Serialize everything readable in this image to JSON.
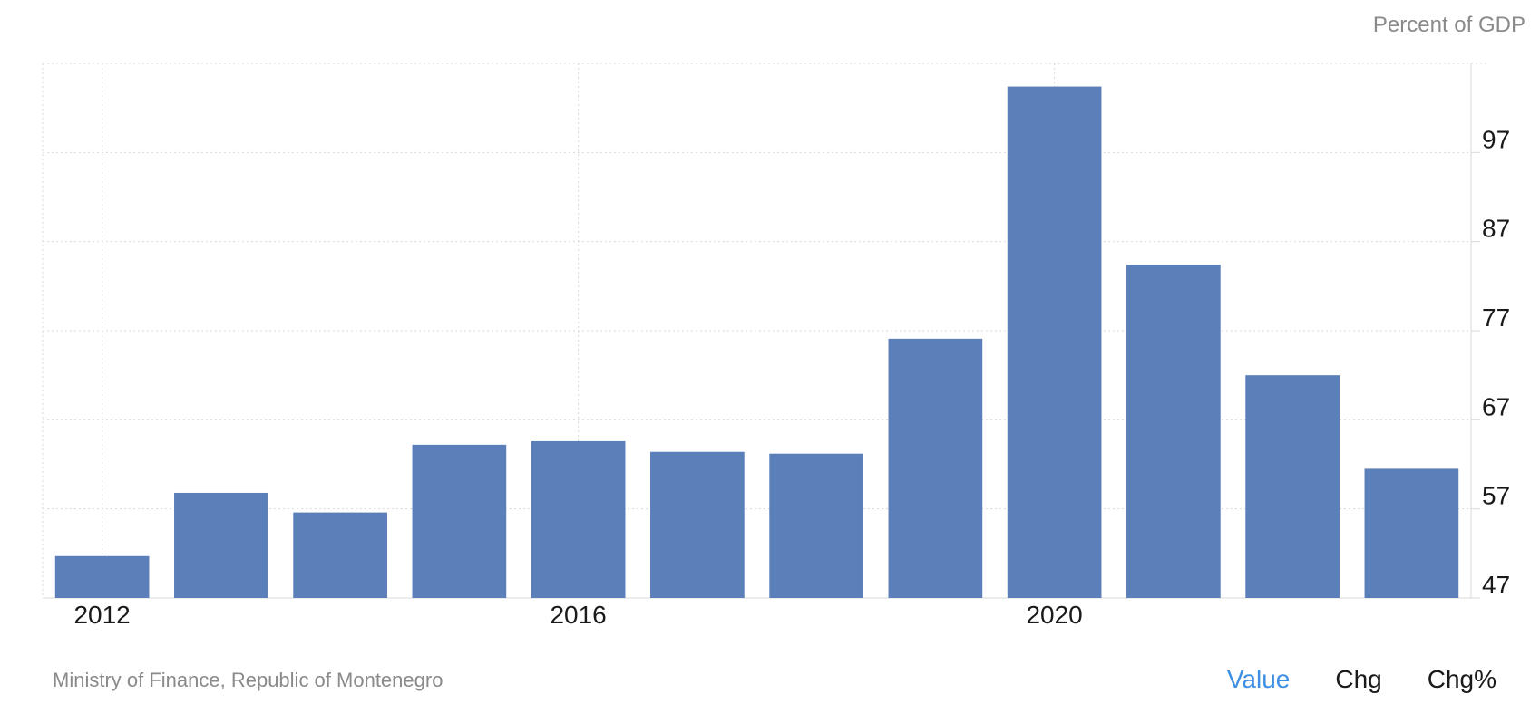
{
  "unit_label": "Percent of GDP",
  "source": "Ministry of Finance, Republic of Montenegro",
  "toggles": [
    {
      "label": "Value",
      "active": true
    },
    {
      "label": "Chg",
      "active": false
    },
    {
      "label": "Chg%",
      "active": false
    }
  ],
  "colors": {
    "bar": "#5b7fb8",
    "grid": "#d9d9d9",
    "active_toggle": "#3d8fe4"
  },
  "chart_data": {
    "type": "bar",
    "categories": [
      "2012",
      "2013",
      "2014",
      "2015",
      "2016",
      "2017",
      "2018",
      "2019",
      "2020",
      "2021",
      "2022",
      "2023"
    ],
    "values": [
      51.7,
      58.8,
      56.6,
      64.2,
      64.6,
      63.4,
      63.2,
      76.1,
      104.4,
      84.4,
      72.0,
      61.5
    ],
    "x_tick_labels": [
      "2012",
      "2016",
      "2020"
    ],
    "y_ticks": [
      47,
      57,
      67,
      77,
      87,
      97
    ],
    "ylim": [
      47,
      107
    ],
    "ylabel": "Percent of GDP",
    "grid": true,
    "y_axis_side": "right"
  }
}
